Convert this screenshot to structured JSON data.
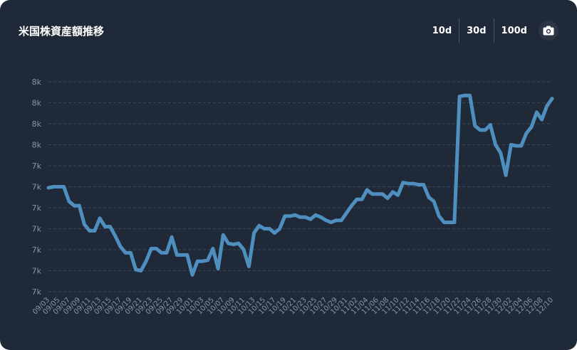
{
  "title": "米国株資産額推移",
  "ranges": [
    "10d",
    "30d",
    "100d"
  ],
  "icons": {
    "camera": "camera-icon"
  },
  "colors": {
    "background": "#1f2937",
    "line": "#4f8fc0",
    "grid": "#3b4656",
    "text": "#8a94a3"
  },
  "chart_data": {
    "type": "line",
    "title": "米国株資産額推移",
    "xlabel": "",
    "ylabel": "",
    "y_tick_labels": [
      "7k",
      "7k",
      "7k",
      "7k",
      "7k",
      "7k",
      "7k",
      "8k",
      "8k",
      "8k",
      "8k"
    ],
    "x_tick_labels": [
      "09/03",
      "09/05",
      "09/07",
      "09/09",
      "09/11",
      "09/13",
      "09/15",
      "09/17",
      "09/19",
      "09/21",
      "09/23",
      "09/25",
      "09/27",
      "09/29",
      "10/01",
      "10/03",
      "10/05",
      "10/07",
      "10/09",
      "10/11",
      "10/13",
      "10/15",
      "10/17",
      "10/19",
      "10/21",
      "10/23",
      "10/25",
      "10/27",
      "10/29",
      "10/31",
      "11/02",
      "11/04",
      "11/06",
      "11/08",
      "11/10",
      "11/12",
      "11/14",
      "11/16",
      "11/18",
      "11/20",
      "11/22",
      "11/24",
      "11/26",
      "11/28",
      "11/30",
      "12/02",
      "12/04",
      "12/06",
      "12/08",
      "12/10"
    ],
    "ylim": [
      6800,
      8800
    ],
    "grid": true,
    "legend": "none",
    "x": [
      "09/03",
      "09/04",
      "09/05",
      "09/06",
      "09/07",
      "09/08",
      "09/09",
      "09/10",
      "09/11",
      "09/12",
      "09/13",
      "09/14",
      "09/15",
      "09/16",
      "09/17",
      "09/18",
      "09/19",
      "09/20",
      "09/21",
      "09/22",
      "09/23",
      "09/24",
      "09/25",
      "09/26",
      "09/27",
      "09/28",
      "09/29",
      "09/30",
      "10/01",
      "10/02",
      "10/03",
      "10/04",
      "10/05",
      "10/06",
      "10/07",
      "10/08",
      "10/09",
      "10/10",
      "10/11",
      "10/12",
      "10/13",
      "10/14",
      "10/15",
      "10/16",
      "10/17",
      "10/18",
      "10/19",
      "10/20",
      "10/21",
      "10/22",
      "10/23",
      "10/24",
      "10/25",
      "10/26",
      "10/27",
      "10/28",
      "10/29",
      "10/30",
      "10/31",
      "11/01",
      "11/02",
      "11/03",
      "11/04",
      "11/05",
      "11/06",
      "11/07",
      "11/08",
      "11/09",
      "11/10",
      "11/11",
      "11/12",
      "11/13",
      "11/14",
      "11/15",
      "11/16",
      "11/17",
      "11/18",
      "11/19",
      "11/20",
      "11/21",
      "11/22",
      "11/23",
      "11/24",
      "11/25",
      "11/26",
      "11/27",
      "11/28",
      "11/29",
      "11/30",
      "12/01",
      "12/02",
      "12/03",
      "12/04",
      "12/05",
      "12/06",
      "12/07",
      "12/08",
      "12/09",
      "12/10"
    ],
    "values": [
      7790,
      7800,
      7800,
      7800,
      7660,
      7620,
      7620,
      7440,
      7380,
      7380,
      7500,
      7420,
      7420,
      7330,
      7230,
      7170,
      7170,
      7010,
      7000,
      7090,
      7210,
      7210,
      7170,
      7170,
      7320,
      7150,
      7150,
      7150,
      6960,
      7090,
      7090,
      7100,
      7210,
      7020,
      7340,
      7260,
      7250,
      7260,
      7200,
      7040,
      7360,
      7430,
      7400,
      7400,
      7360,
      7400,
      7520,
      7520,
      7530,
      7510,
      7510,
      7490,
      7530,
      7510,
      7480,
      7460,
      7480,
      7480,
      7550,
      7620,
      7680,
      7680,
      7770,
      7730,
      7730,
      7730,
      7690,
      7750,
      7720,
      7840,
      7830,
      7830,
      7820,
      7820,
      7700,
      7660,
      7520,
      7460,
      7460,
      7460,
      8660,
      8670,
      8670,
      8380,
      8340,
      8340,
      8390,
      8200,
      8120,
      7910,
      8200,
      8190,
      8190,
      8310,
      8370,
      8510,
      8440,
      8570,
      8640
    ]
  }
}
